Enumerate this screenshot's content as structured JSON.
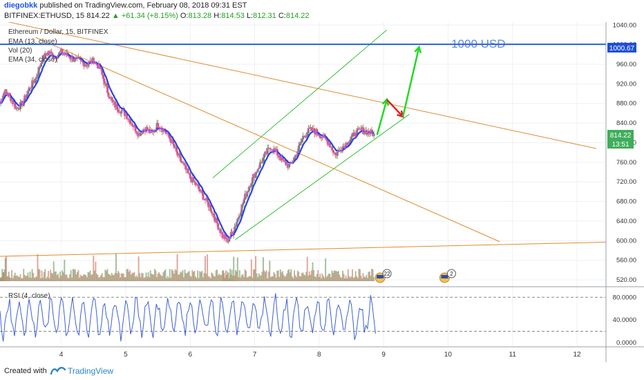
{
  "header": {
    "author": "diegobkk",
    "published_text": "published on TradingView.com, February 08, 2018 09:31 EST",
    "symbol": "BITFINEX:ETHUSD, 15",
    "last": "814.22",
    "change": "▲ +61.34 (+8.15%)",
    "o_label": "O:",
    "o": "813.28",
    "h_label": "H:",
    "h": "814.53",
    "l_label": "L:",
    "l": "812.31",
    "c_label": "C:",
    "c": "814.22"
  },
  "chart_data": [
    {
      "type": "candlestick",
      "title": "Ethereum / Dollar, 15, BITFINEX",
      "indicators": [
        "EMA (13, close)",
        "Vol (20)",
        "EMA (34, close)"
      ],
      "annotation": "1000 USD",
      "horizontal_line": 1000.67,
      "price_badge": "1000.67",
      "last_price_badge": "814.22",
      "countdown_badge": "13:51",
      "y_ticks": [
        "1040.00",
        "1000.00",
        "960.00",
        "920.00",
        "880.00",
        "840.00",
        "800.00",
        "760.00",
        "720.00",
        "680.00",
        "640.00",
        "600.00",
        "560.00",
        "520.00"
      ],
      "ylim": [
        506,
        1046
      ],
      "x_ticks": [
        "4",
        "5",
        "6",
        "7",
        "8",
        "9",
        "10",
        "11",
        "12"
      ],
      "x_tick_values": [
        4,
        5,
        6,
        7,
        8,
        9,
        10,
        11,
        12
      ],
      "xlim": [
        3.05,
        12.45
      ],
      "price_path": [
        [
          3.05,
          880
        ],
        [
          3.12,
          905
        ],
        [
          3.2,
          895
        ],
        [
          3.3,
          870
        ],
        [
          3.4,
          880
        ],
        [
          3.5,
          910
        ],
        [
          3.6,
          930
        ],
        [
          3.7,
          970
        ],
        [
          3.8,
          985
        ],
        [
          3.9,
          975
        ],
        [
          4.0,
          985
        ],
        [
          4.1,
          978
        ],
        [
          4.2,
          970
        ],
        [
          4.3,
          965
        ],
        [
          4.4,
          960
        ],
        [
          4.5,
          968
        ],
        [
          4.6,
          952
        ],
        [
          4.7,
          910
        ],
        [
          4.8,
          880
        ],
        [
          4.9,
          868
        ],
        [
          5.0,
          858
        ],
        [
          5.1,
          838
        ],
        [
          5.2,
          818
        ],
        [
          5.3,
          830
        ],
        [
          5.4,
          818
        ],
        [
          5.5,
          838
        ],
        [
          5.6,
          825
        ],
        [
          5.7,
          805
        ],
        [
          5.8,
          775
        ],
        [
          5.9,
          752
        ],
        [
          6.0,
          728
        ],
        [
          6.1,
          712
        ],
        [
          6.2,
          690
        ],
        [
          6.3,
          670
        ],
        [
          6.4,
          640
        ],
        [
          6.5,
          610
        ],
        [
          6.58,
          600
        ],
        [
          6.66,
          618
        ],
        [
          6.75,
          650
        ],
        [
          6.85,
          690
        ],
        [
          6.95,
          722
        ],
        [
          7.05,
          748
        ],
        [
          7.15,
          772
        ],
        [
          7.25,
          792
        ],
        [
          7.35,
          778
        ],
        [
          7.45,
          760
        ],
        [
          7.55,
          752
        ],
        [
          7.65,
          778
        ],
        [
          7.75,
          812
        ],
        [
          7.85,
          826
        ],
        [
          7.95,
          822
        ],
        [
          8.05,
          812
        ],
        [
          8.15,
          800
        ],
        [
          8.25,
          775
        ],
        [
          8.35,
          790
        ],
        [
          8.45,
          802
        ],
        [
          8.55,
          818
        ],
        [
          8.65,
          826
        ],
        [
          8.75,
          822
        ],
        [
          8.85,
          818
        ]
      ],
      "trend_lines": [
        {
          "name": "upper-channel",
          "x1": 6.35,
          "y1": 728,
          "x2": 9.05,
          "y2": 1030,
          "color": "#35c035"
        },
        {
          "name": "lower-channel",
          "x1": 6.7,
          "y1": 602,
          "x2": 9.4,
          "y2": 858,
          "color": "#35c035"
        },
        {
          "name": "descending-resistance",
          "x1": 3.05,
          "y1": 1050,
          "x2": 12.3,
          "y2": 788,
          "color": "#e08a2c"
        },
        {
          "name": "descending-steep",
          "x1": 3.6,
          "y1": 1015,
          "x2": 10.8,
          "y2": 598,
          "color": "#e08a2c"
        },
        {
          "name": "support",
          "x1": 3.05,
          "y1": 568,
          "x2": 12.45,
          "y2": 597,
          "color": "#e08a2c"
        }
      ],
      "arrows": [
        {
          "color": "#22d922",
          "from": [
            8.9,
            816
          ],
          "to": [
            9.05,
            888
          ]
        },
        {
          "color": "#e02020",
          "from": [
            9.05,
            888
          ],
          "to": [
            9.3,
            853
          ]
        },
        {
          "color": "#22d922",
          "from": [
            9.3,
            853
          ],
          "to": [
            9.55,
            995
          ]
        }
      ],
      "event_badges": [
        {
          "x": 9.0,
          "label": "22"
        },
        {
          "x": 10.0,
          "label": "2"
        }
      ]
    },
    {
      "type": "line",
      "title": "RSI (4, close)",
      "y_ticks": [
        "80.0000",
        "40.0000",
        "0.0000"
      ],
      "ylim": [
        -5,
        95
      ],
      "levels": [
        20,
        80
      ]
    }
  ],
  "footer": {
    "created_with": "Created with",
    "brand": "TradingView"
  },
  "colors": {
    "price_line": "#e35bd0",
    "ema_line": "#2a3ef0",
    "candle_up": "#5b8c4a",
    "candle_down": "#c2624a",
    "rsi_line": "#3a5fd6",
    "horizontal": "#2a60d8"
  }
}
